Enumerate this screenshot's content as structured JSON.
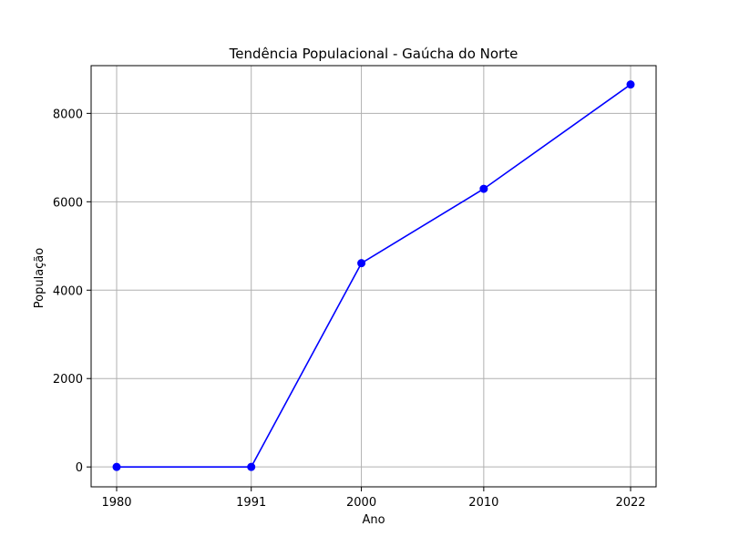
{
  "chart_data": {
    "type": "line",
    "title": "Tendência Populacional - Gaúcha do Norte",
    "xlabel": "Ano",
    "ylabel": "População",
    "categories": [
      "1980",
      "1991",
      "2000",
      "2010",
      "2022"
    ],
    "y_ticks": [
      0,
      2000,
      4000,
      6000,
      8000
    ],
    "ylim": [
      -450,
      9080
    ],
    "grid": true,
    "series": [
      {
        "values": [
          0,
          0,
          4611,
          6293,
          8654
        ],
        "color": "#0000ff",
        "marker": "circle"
      }
    ]
  }
}
